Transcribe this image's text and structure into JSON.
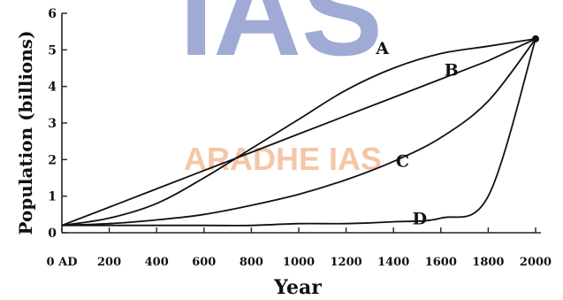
{
  "watermark": {
    "text_large": "IAS",
    "text_small": "ARADHE IAS",
    "color": "#7f8fc8",
    "color_small": "#f2b48c"
  },
  "chart_data": {
    "type": "line",
    "title": "",
    "xlabel": "Year",
    "ylabel": "Population (billions)",
    "ylim": [
      0,
      6
    ],
    "yticks": [
      "0",
      "1",
      "2",
      "3",
      "4",
      "5",
      "6"
    ],
    "xtick_labels": [
      "0 AD",
      "200",
      "400",
      "600",
      "800",
      "1000",
      "1200",
      "1400",
      "1600",
      "1800",
      "2000"
    ],
    "x": [
      0,
      200,
      400,
      600,
      800,
      1000,
      1200,
      1400,
      1600,
      1800,
      2000
    ],
    "series": [
      {
        "name": "A",
        "values": [
          0.2,
          0.4,
          0.8,
          1.5,
          2.3,
          3.1,
          3.9,
          4.5,
          4.9,
          5.1,
          5.3
        ]
      },
      {
        "name": "B",
        "values": [
          0.2,
          0.7,
          1.2,
          1.7,
          2.2,
          2.7,
          3.2,
          3.7,
          4.2,
          4.7,
          5.3
        ]
      },
      {
        "name": "C",
        "values": [
          0.2,
          0.25,
          0.35,
          0.5,
          0.75,
          1.05,
          1.45,
          1.95,
          2.6,
          3.6,
          5.3
        ]
      },
      {
        "name": "D",
        "values": [
          0.2,
          0.2,
          0.2,
          0.2,
          0.2,
          0.25,
          0.25,
          0.3,
          0.4,
          1.0,
          5.3
        ]
      }
    ],
    "colors": {
      "line": "#111111",
      "axis": "#222222",
      "background": "#ffffff"
    },
    "grid": false,
    "legend": "inline labels"
  }
}
